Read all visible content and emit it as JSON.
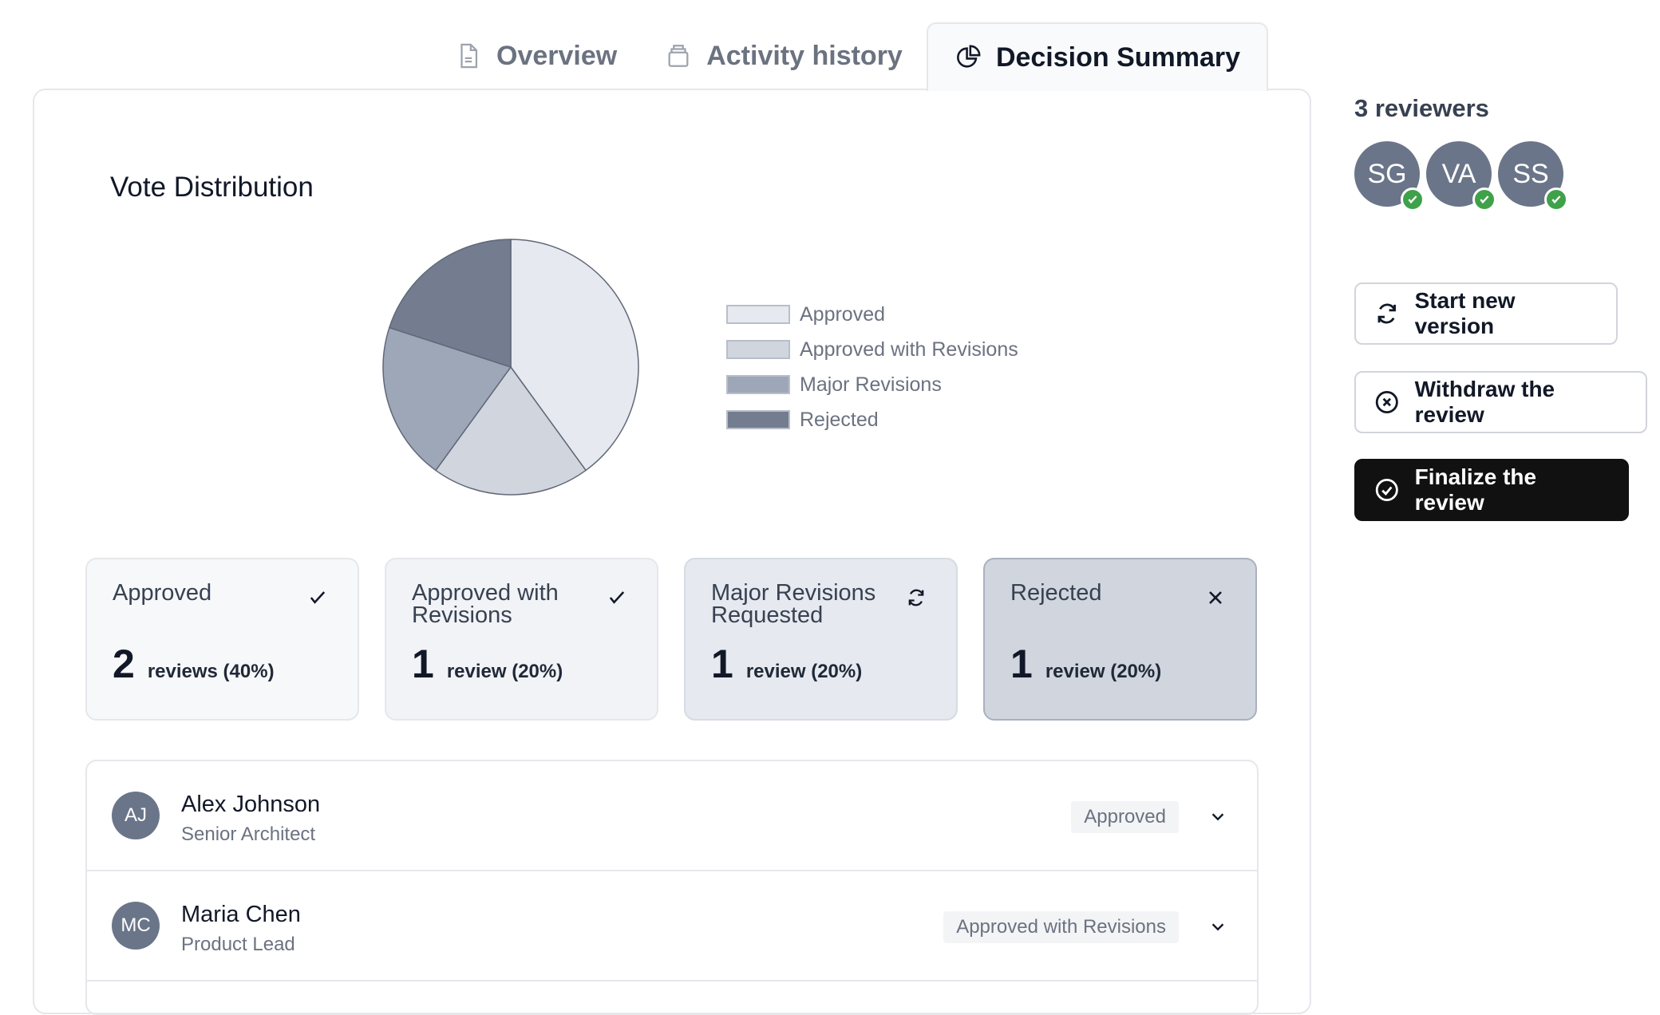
{
  "tabs": [
    {
      "label": "Overview",
      "icon": "document-icon"
    },
    {
      "label": "Activity history",
      "icon": "archive-icon"
    },
    {
      "label": "Decision Summary",
      "icon": "pie-chart-icon",
      "active": true
    }
  ],
  "chart_data": {
    "type": "pie",
    "title": "Vote Distribution",
    "categories": [
      "Approved",
      "Approved with Revisions",
      "Major Revisions",
      "Rejected"
    ],
    "values": [
      2,
      1,
      1,
      1
    ],
    "colors": [
      "#e6e9ef",
      "#d0d5de",
      "#9ea7b7",
      "#737d8f"
    ],
    "legend_position": "right"
  },
  "stats": [
    {
      "label": "Approved",
      "count": "2",
      "unit": "reviews (40%)",
      "icon": "check-icon",
      "bg": "#f7f8fa"
    },
    {
      "label": "Approved with Revisions",
      "count": "1",
      "unit": "review (20%)",
      "icon": "check-icon",
      "bg": "#f1f3f6"
    },
    {
      "label": "Major Revisions Requested",
      "count": "1",
      "unit": "review (20%)",
      "icon": "refresh-icon",
      "bg": "#e6e9ef"
    },
    {
      "label": "Rejected",
      "count": "1",
      "unit": "review (20%)",
      "icon": "close-icon",
      "bg": "#d0d5de"
    }
  ],
  "reviews": [
    {
      "initials": "AJ",
      "name": "Alex Johnson",
      "role": "Senior Architect",
      "decision": "Approved"
    },
    {
      "initials": "MC",
      "name": "Maria Chen",
      "role": "Product Lead",
      "decision": "Approved with Revisions"
    }
  ],
  "reviewers": {
    "title": "3 reviewers",
    "people": [
      "SG",
      "VA",
      "SS"
    ]
  },
  "actions": {
    "start_new_version": "Start new version",
    "withdraw": "Withdraw the review",
    "finalize": "Finalize the review"
  }
}
